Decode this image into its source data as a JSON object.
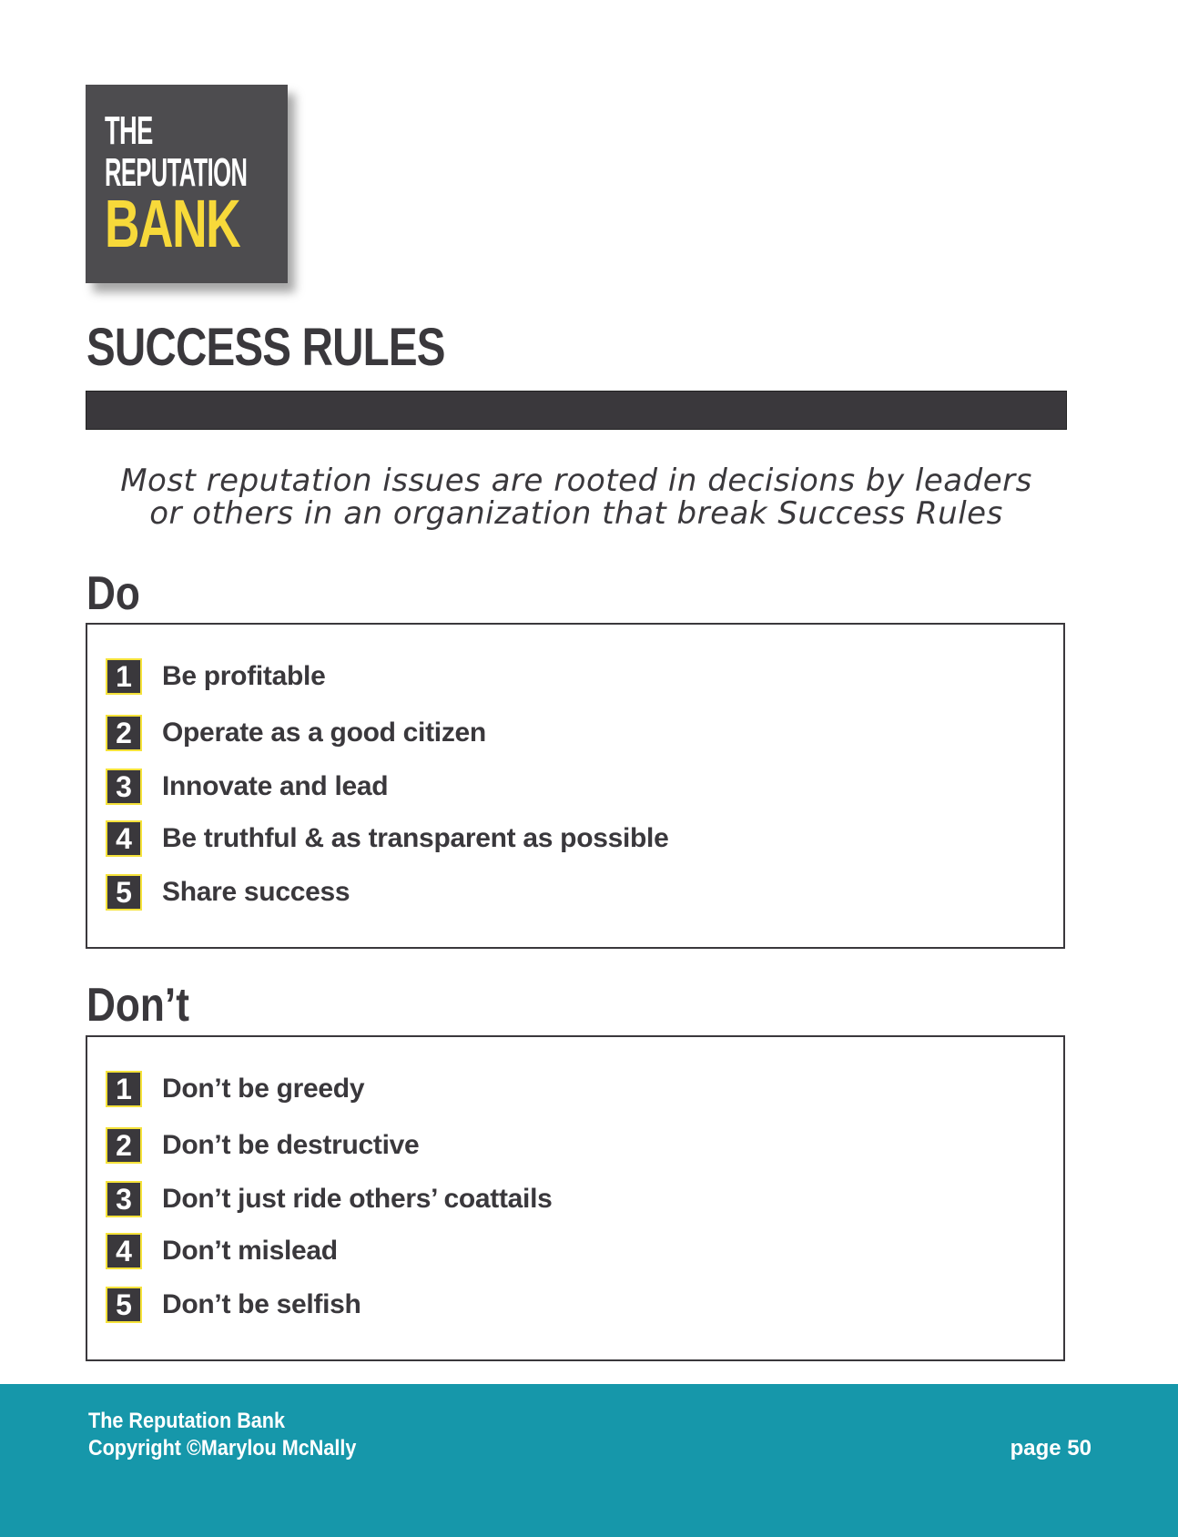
{
  "logo": {
    "line1": "THE",
    "line2": "REPUTATION",
    "line3": "BANK"
  },
  "title": "SUCCESS RULES",
  "intro": {
    "line1": "Most reputation issues are rooted in decisions by leaders",
    "line2": "or others in an organization that break Success Rules"
  },
  "do_section": {
    "heading": "Do",
    "items": [
      {
        "num": "1",
        "text": "Be profitable"
      },
      {
        "num": "2",
        "text": "Operate as a good citizen"
      },
      {
        "num": "3",
        "text": "Innovate and lead"
      },
      {
        "num": "4",
        "text": "Be truthful & as transparent as possible"
      },
      {
        "num": "5",
        "text": "Share success"
      }
    ]
  },
  "dont_section": {
    "heading": "Don’t",
    "items": [
      {
        "num": "1",
        "text": "Don’t be greedy"
      },
      {
        "num": "2",
        "text": "Don’t be destructive"
      },
      {
        "num": "3",
        "text": "Don’t just ride others’ coattails"
      },
      {
        "num": "4",
        "text": "Don’t mislead"
      },
      {
        "num": "5",
        "text": "Don’t be selfish"
      }
    ]
  },
  "footer": {
    "line1": "The Reputation Bank",
    "line2": "Copyright ©Marylou McNally",
    "page": "page 50"
  },
  "colors": {
    "dark": "#3a383c",
    "logo_bg": "#4d4c4f",
    "accent_yellow": "#f7d93a",
    "footer_teal": "#1697aa"
  }
}
